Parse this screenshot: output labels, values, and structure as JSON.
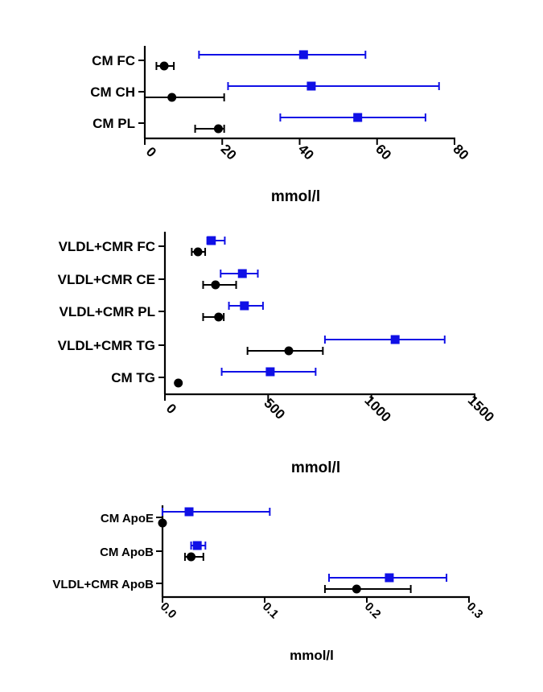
{
  "colors": {
    "series_a": "#1010e6",
    "series_b": "#000000"
  },
  "chart_data": [
    {
      "type": "scatter",
      "orientation": "horizontal-errorbar",
      "categories": [
        "CM FC",
        "CM CH",
        "CM PL"
      ],
      "xlabel": "mmol/l",
      "xlim": [
        0,
        80
      ],
      "xticks": [
        "0",
        "20",
        "40",
        "60",
        "80"
      ],
      "xtick_values": [
        0,
        20,
        40,
        60,
        80
      ],
      "series": [
        {
          "name": "blue",
          "marker": "square",
          "values": [
            41,
            43,
            55
          ],
          "err_low": [
            14,
            21.5,
            35
          ],
          "err_high": [
            57,
            76,
            72.5
          ]
        },
        {
          "name": "black",
          "marker": "circle",
          "values": [
            5,
            7,
            19
          ],
          "err_low": [
            3,
            0,
            13
          ],
          "err_high": [
            7.5,
            20.5,
            20.5
          ]
        }
      ]
    },
    {
      "type": "scatter",
      "orientation": "horizontal-errorbar",
      "categories": [
        "VLDL+CMR FC",
        "VLDL+CMR CE",
        "VLDL+CMR PL",
        "VLDL+CMR TG",
        "CM TG"
      ],
      "xlabel": "mmol/l",
      "xlim": [
        0,
        1500
      ],
      "xticks": [
        "0",
        "500",
        "1000",
        "1500"
      ],
      "xtick_values": [
        0,
        500,
        1000,
        1500
      ],
      "series": [
        {
          "name": "blue",
          "marker": "square",
          "values": [
            225,
            375,
            385,
            1115,
            510
          ],
          "err_low": [
            205,
            270,
            310,
            775,
            275
          ],
          "err_high": [
            290,
            450,
            475,
            1355,
            730
          ]
        },
        {
          "name": "black",
          "marker": "circle",
          "values": [
            160,
            245,
            260,
            600,
            65
          ],
          "err_low": [
            130,
            185,
            185,
            400,
            65
          ],
          "err_high": [
            195,
            345,
            285,
            765,
            65
          ]
        }
      ]
    },
    {
      "type": "scatter",
      "orientation": "horizontal-errorbar",
      "categories": [
        "CM ApoE",
        "CM ApoB",
        "VLDL+CMR ApoB"
      ],
      "xlabel": "mmol/l",
      "xlim": [
        0,
        0.3
      ],
      "xticks": [
        "0.0",
        "0.1",
        "0.2",
        "0.3"
      ],
      "xtick_values": [
        0,
        0.1,
        0.2,
        0.3
      ],
      "series": [
        {
          "name": "blue",
          "marker": "square",
          "values": [
            0.026,
            0.034,
            0.222
          ],
          "err_low": [
            0,
            0.028,
            0.163
          ],
          "err_high": [
            0.105,
            0.042,
            0.278
          ]
        },
        {
          "name": "black",
          "marker": "circle",
          "values": [
            0,
            0.028,
            0.19
          ],
          "err_low": [
            0,
            0.022,
            0.159
          ],
          "err_high": [
            0,
            0.04,
            0.243
          ]
        }
      ]
    }
  ]
}
